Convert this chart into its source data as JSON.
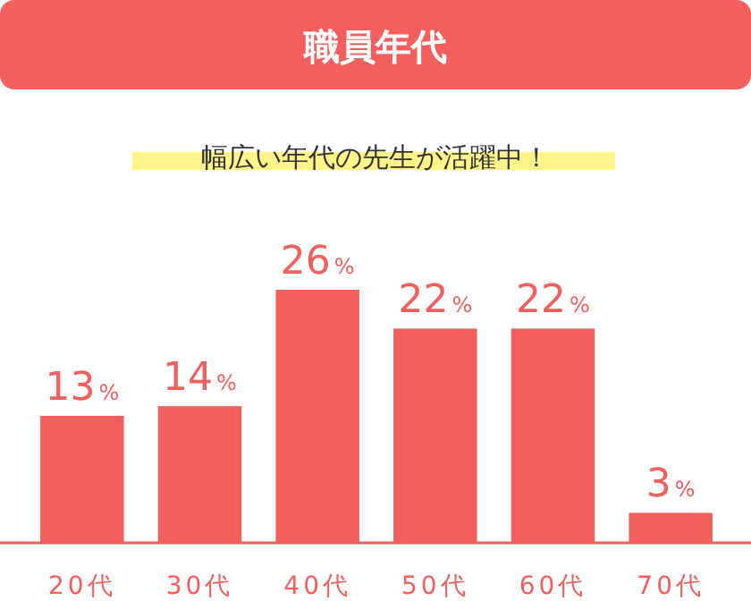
{
  "chart_data": {
    "type": "bar",
    "title": "職員年代",
    "subtitle": "幅広い年代の先生が活躍中！",
    "categories": [
      "20代",
      "30代",
      "40代",
      "50代",
      "60代",
      "70代"
    ],
    "values": [
      13,
      14,
      26,
      22,
      22,
      3
    ],
    "value_labels": [
      "13%",
      "14%",
      "26%",
      "22%",
      "22%",
      "3%"
    ],
    "color": "#f25f5c"
  }
}
